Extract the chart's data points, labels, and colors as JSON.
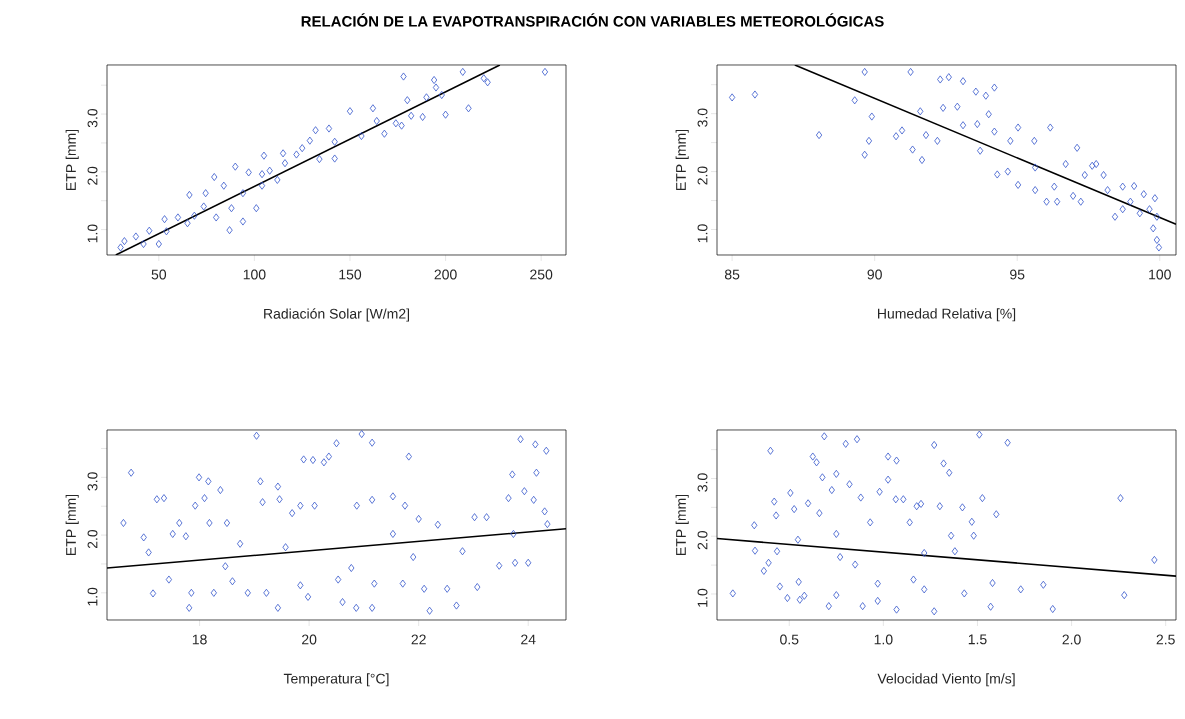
{
  "chart_data": [
    {
      "type": "scatter",
      "title": "RELACIÓN DE LA EVAPOTRANSPIRACIÓN CON VARIABLES METEOROLÓGICAS",
      "xlabel": "Radiación Solar [W/m2]",
      "ylabel": "ETP [mm]",
      "xlim": [
        22.9,
        263
      ],
      "ylim": [
        0.56,
        3.85
      ],
      "xticks": [
        50,
        100,
        150,
        200,
        250
      ],
      "yticks": [
        {
          "value": 1.0,
          "label": "1.0"
        },
        {
          "value": 1.5,
          "label": null
        },
        {
          "value": 2.0,
          "label": "2.0"
        },
        {
          "value": 2.5,
          "label": null
        },
        {
          "value": 3.0,
          "label": "3.0"
        },
        {
          "value": 3.5,
          "label": null
        }
      ],
      "series": [
        {
          "marker": "diamond",
          "color": "#3355cc",
          "x": [
            252,
            209,
            178,
            220,
            222,
            194,
            195,
            190,
            180,
            198,
            212,
            200,
            188,
            182,
            150,
            162,
            164,
            174,
            177,
            168,
            156,
            142,
            139,
            132,
            129,
            134,
            142,
            122,
            115,
            105,
            108,
            97,
            90,
            79,
            112,
            104,
            94,
            84,
            74.5,
            66,
            88,
            94,
            87,
            101,
            80,
            65,
            68.6,
            60,
            53,
            54,
            50,
            42,
            45,
            38,
            32,
            30,
            73.5,
            116,
            125,
            104
          ],
          "values": [
            3.73,
            3.73,
            3.65,
            3.62,
            3.55,
            3.59,
            3.46,
            3.29,
            3.24,
            3.33,
            3.1,
            2.99,
            2.95,
            2.97,
            3.05,
            3.1,
            2.88,
            2.84,
            2.8,
            2.66,
            2.62,
            2.52,
            2.75,
            2.72,
            2.54,
            2.22,
            2.23,
            2.3,
            2.32,
            2.28,
            2.02,
            1.99,
            2.09,
            1.91,
            1.86,
            1.76,
            1.63,
            1.76,
            1.63,
            1.6,
            1.37,
            1.14,
            0.99,
            1.37,
            1.21,
            1.11,
            1.24,
            1.21,
            1.18,
            0.97,
            0.75,
            0.75,
            0.98,
            0.88,
            0.8,
            0.69,
            1.4,
            2.15,
            2.41,
            1.96
          ]
        },
        {
          "type": "line",
          "color": "#000000",
          "x": [
            27.5,
            228.4
          ],
          "values": [
            0.56,
            3.85
          ]
        }
      ]
    },
    {
      "type": "scatter",
      "xlabel": "Humedad Relativa [%]",
      "ylabel": "ETP [mm]",
      "xlim": [
        84.47,
        100.57
      ],
      "ylim": [
        0.56,
        3.84
      ],
      "xticks": [
        85,
        90,
        95,
        100
      ],
      "yticks": [
        {
          "value": 1.0,
          "label": "1.0"
        },
        {
          "value": 1.5,
          "label": null
        },
        {
          "value": 2.0,
          "label": "2.0"
        },
        {
          "value": 2.5,
          "label": null
        },
        {
          "value": 3.0,
          "label": "3.0"
        },
        {
          "value": 3.5,
          "label": null
        }
      ],
      "series": [
        {
          "marker": "diamond",
          "color": "#3355cc",
          "x": [
            85.0,
            85.8,
            88.05,
            89.65,
            91.26,
            89.3,
            89.9,
            89.65,
            89.8,
            90.75,
            90.96,
            91.33,
            91.66,
            91.8,
            91.6,
            92.4,
            92.3,
            92.6,
            92.9,
            93.1,
            93.1,
            92.2,
            93.55,
            93.9,
            94.2,
            94.0,
            93.6,
            93.7,
            94.2,
            94.3,
            94.67,
            94.76,
            95.03,
            95.03,
            95.63,
            95.6,
            95.63,
            96.03,
            96.16,
            96.3,
            96.4,
            96.7,
            97.1,
            96.96,
            97.23,
            97.37,
            97.63,
            98.03,
            98.17,
            98.43,
            98.7,
            98.97,
            99.1,
            99.44,
            99.64,
            99.77,
            99.9,
            99.97,
            99.9,
            99.83,
            99.3,
            98.7,
            97.77
          ],
          "values": [
            3.28,
            3.33,
            2.63,
            3.72,
            3.72,
            3.23,
            2.95,
            2.29,
            2.53,
            2.61,
            2.71,
            2.38,
            2.2,
            2.63,
            3.04,
            3.1,
            3.59,
            3.63,
            3.12,
            3.56,
            2.8,
            2.53,
            3.38,
            3.31,
            3.45,
            2.99,
            2.82,
            2.36,
            2.69,
            1.95,
            2.0,
            2.53,
            2.76,
            1.77,
            1.68,
            2.53,
            2.07,
            1.48,
            2.76,
            1.74,
            1.48,
            2.13,
            2.41,
            1.58,
            1.48,
            1.94,
            2.1,
            1.94,
            1.68,
            1.22,
            1.74,
            1.48,
            1.75,
            1.61,
            1.35,
            1.02,
            0.82,
            0.69,
            1.22,
            1.54,
            1.28,
            1.35,
            2.13
          ]
        },
        {
          "type": "line",
          "color": "#000000",
          "x": [
            87.2,
            100.57
          ],
          "values": [
            3.84,
            1.09
          ]
        }
      ]
    },
    {
      "type": "scatter",
      "xlabel": "Temperatura [°C]",
      "ylabel": "ETP [mm]",
      "xlim": [
        16.31,
        24.69
      ],
      "ylim": [
        0.53,
        3.82
      ],
      "xticks": [
        18,
        20,
        22,
        24
      ],
      "yticks": [
        {
          "value": 1.0,
          "label": "1.0"
        },
        {
          "value": 1.5,
          "label": null
        },
        {
          "value": 2.0,
          "label": "2.0"
        },
        {
          "value": 2.5,
          "label": null
        },
        {
          "value": 3.0,
          "label": "3.0"
        },
        {
          "value": 3.5,
          "label": null
        }
      ],
      "series": [
        {
          "marker": "diamond",
          "color": "#3355cc",
          "x": [
            16.61,
            16.75,
            16.98,
            17.07,
            17.15,
            17.22,
            17.35,
            17.44,
            17.51,
            17.63,
            17.75,
            17.81,
            17.85,
            17.92,
            17.99,
            18.09,
            18.16,
            18.18,
            18.26,
            18.38,
            18.47,
            18.5,
            18.6,
            18.74,
            18.88,
            19.04,
            19.11,
            19.15,
            19.22,
            19.43,
            19.46,
            19.43,
            19.57,
            19.69,
            19.84,
            19.9,
            19.84,
            19.98,
            20.07,
            20.1,
            20.27,
            20.36,
            20.5,
            20.53,
            20.61,
            20.77,
            20.86,
            20.87,
            20.96,
            21.15,
            21.15,
            21.15,
            21.19,
            21.53,
            21.53,
            21.75,
            21.82,
            21.71,
            21.9,
            22.0,
            22.1,
            22.2,
            22.35,
            22.52,
            22.69,
            22.8,
            23.02,
            23.07,
            23.24,
            23.47,
            23.64,
            23.71,
            23.76,
            23.86,
            23.93,
            24.0,
            24.13,
            24.15,
            24.33,
            24.3,
            24.35,
            24.1,
            23.73
          ],
          "values": [
            2.21,
            3.08,
            1.96,
            1.7,
            0.99,
            2.62,
            2.64,
            1.23,
            2.02,
            2.21,
            1.98,
            0.74,
            1.0,
            2.51,
            3.0,
            2.64,
            2.93,
            2.21,
            1.0,
            2.78,
            1.46,
            2.21,
            1.2,
            1.85,
            1.0,
            3.72,
            2.93,
            2.57,
            1.0,
            2.84,
            2.62,
            0.74,
            1.79,
            2.38,
            2.51,
            3.31,
            1.13,
            0.93,
            3.3,
            2.51,
            3.26,
            3.36,
            3.59,
            1.23,
            0.84,
            1.43,
            0.74,
            2.51,
            3.75,
            3.6,
            2.61,
            0.74,
            1.16,
            2.67,
            2.02,
            2.51,
            3.36,
            1.16,
            1.62,
            2.28,
            1.07,
            0.69,
            2.18,
            1.07,
            0.78,
            1.72,
            2.31,
            1.1,
            2.31,
            1.47,
            2.64,
            3.05,
            1.52,
            3.66,
            2.76,
            1.52,
            3.57,
            3.08,
            3.46,
            2.41,
            2.19,
            2.61,
            2.02
          ]
        },
        {
          "type": "line",
          "color": "#000000",
          "x": [
            16.31,
            24.69
          ],
          "values": [
            1.43,
            2.11
          ]
        }
      ]
    },
    {
      "type": "scatter",
      "xlabel": "Velocidad Viento [m/s]",
      "ylabel": "ETP [mm]",
      "xlim": [
        0.116,
        2.555
      ],
      "ylim": [
        0.55,
        3.84
      ],
      "xticks": [
        {
          "value": 0.5,
          "label": "0.5"
        },
        {
          "value": 1.0,
          "label": "1.0"
        },
        {
          "value": 1.5,
          "label": "1.5"
        },
        {
          "value": 2.0,
          "label": "2.0"
        },
        {
          "value": 2.5,
          "label": "2.5"
        }
      ],
      "yticks": [
        {
          "value": 1.0,
          "label": "1.0"
        },
        {
          "value": 1.5,
          "label": null
        },
        {
          "value": 2.0,
          "label": "2.0"
        },
        {
          "value": 2.5,
          "label": null
        },
        {
          "value": 3.0,
          "label": "3.0"
        },
        {
          "value": 3.5,
          "label": null
        }
      ],
      "series": [
        {
          "marker": "diamond",
          "color": "#3355cc",
          "x": [
            0.2,
            0.314,
            0.318,
            0.365,
            0.39,
            0.4,
            0.42,
            0.43,
            0.435,
            0.45,
            0.49,
            0.506,
            0.526,
            0.546,
            0.55,
            0.556,
            0.58,
            0.6,
            0.625,
            0.645,
            0.66,
            0.676,
            0.686,
            0.71,
            0.726,
            0.75,
            0.75,
            0.8,
            0.82,
            0.86,
            0.88,
            0.89,
            0.93,
            0.97,
            0.98,
            1.025,
            1.025,
            1.07,
            1.07,
            1.066,
            1.106,
            1.14,
            1.177,
            1.2,
            1.217,
            1.27,
            1.27,
            1.3,
            1.32,
            1.35,
            1.36,
            1.38,
            1.42,
            1.43,
            1.47,
            1.48,
            1.51,
            1.526,
            1.57,
            1.58,
            1.6,
            1.66,
            1.73,
            1.85,
            1.9,
            2.26,
            2.28,
            2.44,
            0.85,
            0.97,
            1.16,
            0.77,
            1.217,
            0.75
          ],
          "values": [
            1.01,
            2.19,
            1.75,
            1.4,
            1.54,
            3.48,
            2.6,
            2.36,
            1.74,
            1.13,
            0.93,
            2.75,
            2.47,
            1.94,
            1.21,
            0.9,
            0.97,
            2.57,
            3.38,
            3.28,
            2.4,
            3.02,
            3.73,
            0.79,
            2.8,
            3.08,
            0.98,
            3.6,
            2.9,
            3.68,
            2.67,
            0.79,
            2.24,
            0.88,
            2.77,
            2.98,
            3.38,
            3.31,
            0.73,
            2.64,
            2.64,
            2.24,
            2.52,
            2.56,
            1.08,
            3.58,
            0.7,
            2.52,
            3.26,
            3.1,
            2.01,
            1.74,
            2.5,
            1.01,
            2.25,
            2.01,
            3.76,
            2.66,
            0.78,
            1.19,
            2.38,
            3.62,
            1.08,
            1.16,
            0.74,
            2.66,
            0.98,
            1.59,
            1.51,
            1.18,
            1.25,
            1.64,
            1.71,
            2.04
          ]
        },
        {
          "type": "line",
          "color": "#000000",
          "x": [
            0.116,
            2.555
          ],
          "values": [
            1.96,
            1.31
          ]
        }
      ]
    }
  ]
}
